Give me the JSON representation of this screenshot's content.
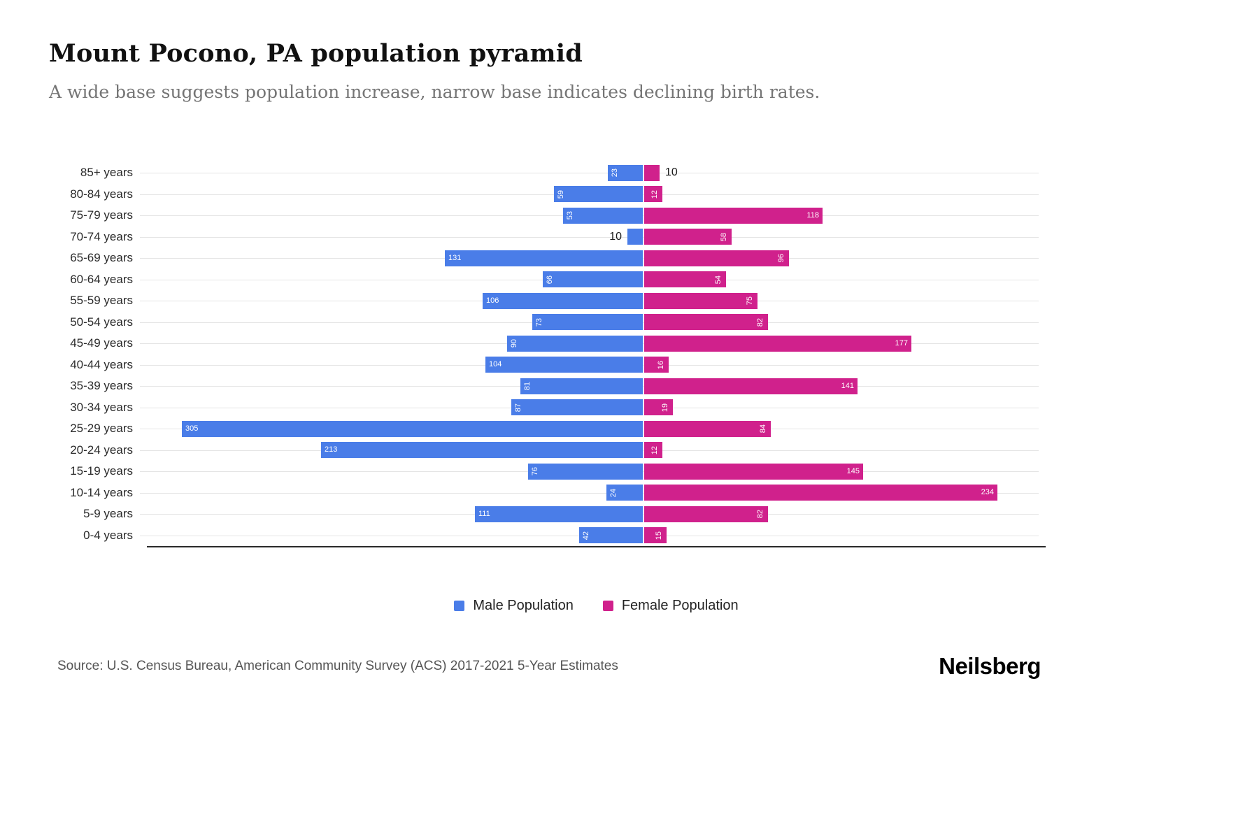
{
  "header": {
    "title": "Mount Pocono, PA population pyramid",
    "subtitle": "A wide base suggests population increase, narrow base indicates declining birth rates."
  },
  "legend": [
    {
      "label": "Male Population",
      "color": "#4a7de8"
    },
    {
      "label": "Female Population",
      "color": "#d0218c"
    }
  ],
  "footer": {
    "source": "Source: U.S. Census Bureau, American Community Survey (ACS) 2017-2021 5-Year Estimates",
    "brand": "Neilsberg"
  },
  "chart_data": {
    "type": "bar",
    "subtype": "population-pyramid",
    "orientation": "horizontal",
    "title": "Mount Pocono, PA population pyramid",
    "categories": [
      "85+ years",
      "80-84 years",
      "75-79 years",
      "70-74 years",
      "65-69 years",
      "60-64 years",
      "55-59 years",
      "50-54 years",
      "45-49 years",
      "40-44 years",
      "35-39 years",
      "30-34 years",
      "25-29 years",
      "20-24 years",
      "15-19 years",
      "10-14 years",
      "5-9 years",
      "0-4 years"
    ],
    "series": [
      {
        "name": "Male Population",
        "color": "#4a7de8",
        "direction": "left",
        "values": [
          23,
          59,
          53,
          10,
          131,
          66,
          106,
          73,
          90,
          104,
          81,
          87,
          305,
          213,
          76,
          24,
          111,
          42
        ]
      },
      {
        "name": "Female Population",
        "color": "#d0218c",
        "direction": "right",
        "values": [
          10,
          12,
          118,
          58,
          96,
          54,
          75,
          82,
          177,
          16,
          141,
          19,
          84,
          12,
          145,
          234,
          82,
          15
        ]
      }
    ],
    "x_axis_ticks_visible": false,
    "grid": true,
    "legend_position": "bottom",
    "value_label_rules": "labels <= 10 shown outside bar in dark text; labels < 100 rotated inside bar; labels >= 100 horizontal inside bar"
  }
}
